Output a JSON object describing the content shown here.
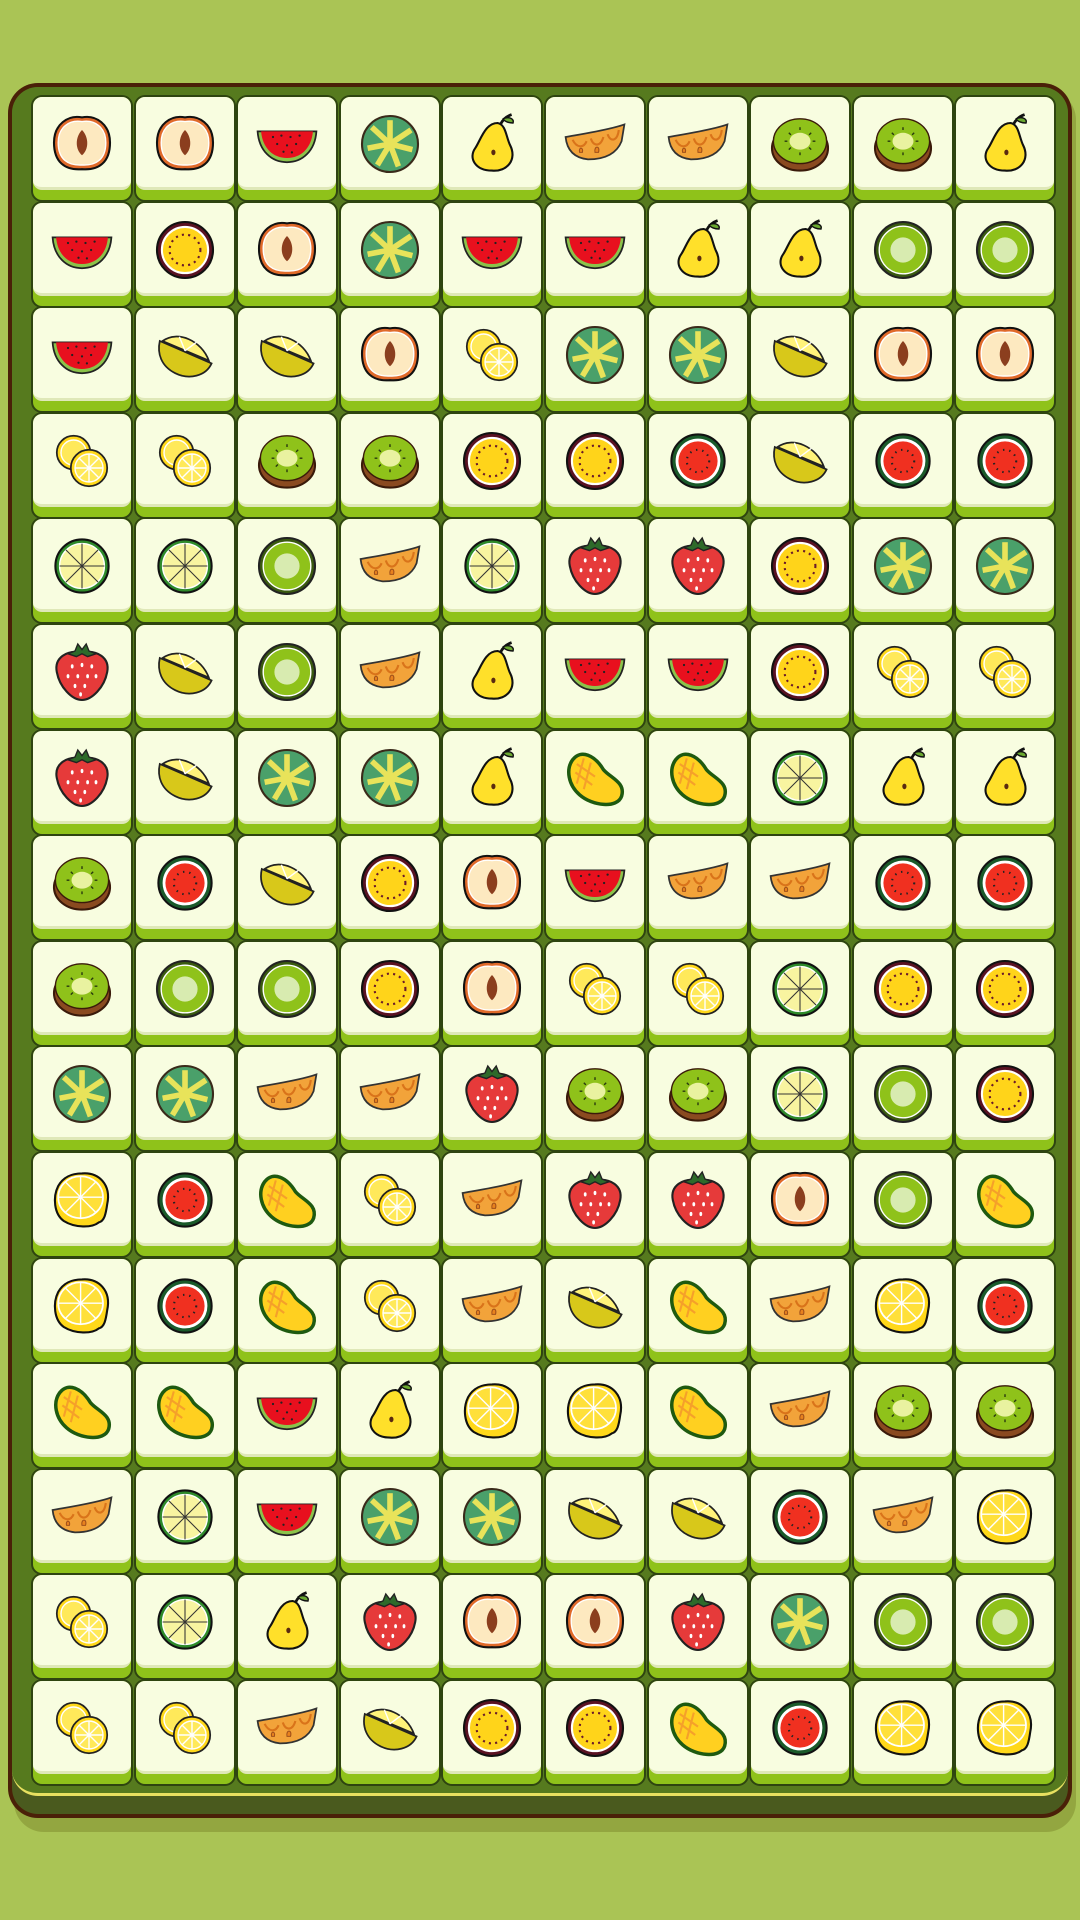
{
  "game": {
    "columns": 10,
    "rows": 16,
    "colors": {
      "background": "#aac455",
      "board": "#567a1e",
      "board_border": "#4a2008",
      "tile_face": "#f8fde0",
      "tile_edge": "#8fc21a"
    },
    "grid": [
      [
        "peach",
        "peach",
        "watermelon-slice",
        "green-citrus",
        "pear",
        "melon-wedge",
        "melon-wedge",
        "kiwi-half",
        "kiwi-half",
        "pear"
      ],
      [
        "watermelon-slice",
        "passion-fruit",
        "peach",
        "green-citrus",
        "watermelon-slice",
        "watermelon-slice",
        "pear",
        "pear",
        "kiwi-slice",
        "kiwi-slice"
      ],
      [
        "watermelon-slice",
        "lemon-wedge",
        "lemon-wedge",
        "peach",
        "orange-slices",
        "green-citrus",
        "green-citrus",
        "lemon-wedge",
        "peach",
        "peach"
      ],
      [
        "orange-slices",
        "orange-slices",
        "kiwi-half",
        "kiwi-half",
        "passion-fruit",
        "passion-fruit",
        "watermelon-round",
        "lemon-wedge",
        "watermelon-round",
        "watermelon-round"
      ],
      [
        "lime-slice",
        "lime-slice",
        "kiwi-slice",
        "melon-wedge",
        "lime-slice",
        "strawberry",
        "strawberry",
        "passion-fruit",
        "green-citrus",
        "green-citrus"
      ],
      [
        "strawberry",
        "lemon-wedge",
        "kiwi-slice",
        "melon-wedge",
        "pear",
        "watermelon-slice",
        "watermelon-slice",
        "passion-fruit",
        "orange-slices",
        "orange-slices"
      ],
      [
        "strawberry",
        "lemon-wedge",
        "green-citrus",
        "green-citrus",
        "pear",
        "mango",
        "mango",
        "lime-slice",
        "pear",
        "pear"
      ],
      [
        "kiwi-half",
        "watermelon-round",
        "lemon-wedge",
        "passion-fruit",
        "peach",
        "watermelon-slice",
        "melon-wedge",
        "melon-wedge",
        "watermelon-round",
        "watermelon-round"
      ],
      [
        "kiwi-half",
        "kiwi-slice",
        "kiwi-slice",
        "passion-fruit",
        "peach",
        "orange-slices",
        "orange-slices",
        "lime-slice",
        "passion-fruit",
        "passion-fruit"
      ],
      [
        "green-citrus",
        "green-citrus",
        "melon-wedge",
        "melon-wedge",
        "strawberry",
        "kiwi-half",
        "kiwi-half",
        "lime-slice",
        "kiwi-slice",
        "passion-fruit"
      ],
      [
        "lemon",
        "watermelon-round",
        "mango",
        "orange-slices",
        "melon-wedge",
        "strawberry",
        "strawberry",
        "peach",
        "kiwi-slice",
        "mango"
      ],
      [
        "lemon",
        "watermelon-round",
        "mango",
        "orange-slices",
        "melon-wedge",
        "lemon-wedge",
        "mango",
        "melon-wedge",
        "lemon",
        "watermelon-round"
      ],
      [
        "mango",
        "mango",
        "watermelon-slice",
        "pear",
        "lemon",
        "lemon",
        "mango",
        "melon-wedge",
        "kiwi-half",
        "kiwi-half"
      ],
      [
        "melon-wedge",
        "lime-slice",
        "watermelon-slice",
        "green-citrus",
        "green-citrus",
        "lemon-wedge",
        "lemon-wedge",
        "watermelon-round",
        "melon-wedge",
        "lemon"
      ],
      [
        "orange-slices",
        "lime-slice",
        "pear",
        "strawberry",
        "peach",
        "peach",
        "strawberry",
        "green-citrus",
        "kiwi-slice",
        "kiwi-slice"
      ],
      [
        "orange-slices",
        "orange-slices",
        "melon-wedge",
        "lemon-wedge",
        "passion-fruit",
        "passion-fruit",
        "mango",
        "watermelon-round",
        "lemon",
        "lemon"
      ]
    ]
  }
}
